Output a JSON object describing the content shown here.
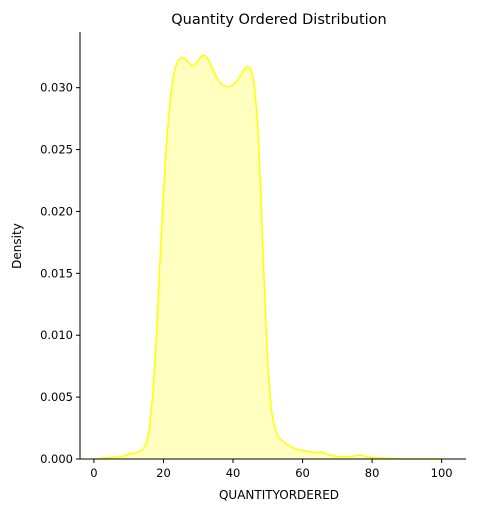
{
  "chart_data": {
    "type": "area",
    "title": "Quantity Ordered Distribution",
    "xlabel": "QUANTITYORDERED",
    "ylabel": "Density",
    "xlim": [
      -4,
      107
    ],
    "ylim": [
      0,
      0.0345
    ],
    "xticks": [
      0,
      20,
      40,
      60,
      80,
      100
    ],
    "xtick_labels": [
      "0",
      "20",
      "40",
      "60",
      "80",
      "100"
    ],
    "yticks": [
      0,
      0.005,
      0.01,
      0.015,
      0.02,
      0.025,
      0.03
    ],
    "ytick_labels": [
      "0.000",
      "0.005",
      "0.010",
      "0.015",
      "0.020",
      "0.025",
      "0.030"
    ],
    "grid": false,
    "legend": "none",
    "colors": {
      "line": "#ffff00",
      "fill": "#ffffc0",
      "axes": "#000000"
    },
    "series": [
      {
        "x": [
          0,
          4,
          8,
          10,
          12,
          14,
          15,
          16,
          17,
          18,
          19,
          20,
          21,
          22,
          23,
          24,
          25,
          26,
          27,
          28,
          29,
          30,
          31,
          32,
          33,
          34,
          35,
          36,
          37,
          38,
          39,
          40,
          41,
          42,
          43,
          44,
          45,
          46,
          47,
          48,
          49,
          50,
          51,
          52,
          53,
          54,
          56,
          58,
          60,
          62,
          64,
          65,
          66,
          68,
          70,
          72,
          74,
          76,
          77,
          78,
          80,
          85,
          90,
          95,
          100
        ],
        "y": [
          0.0,
          0.0001,
          0.0002,
          0.0004,
          0.0005,
          0.0007,
          0.0012,
          0.0025,
          0.0055,
          0.01,
          0.016,
          0.0215,
          0.026,
          0.0292,
          0.0312,
          0.0321,
          0.0324,
          0.0324,
          0.0321,
          0.0318,
          0.0318,
          0.0322,
          0.0326,
          0.0326,
          0.0322,
          0.0316,
          0.031,
          0.0305,
          0.0302,
          0.0301,
          0.0301,
          0.0302,
          0.0305,
          0.0309,
          0.0314,
          0.0317,
          0.0316,
          0.0305,
          0.0275,
          0.0215,
          0.014,
          0.0075,
          0.004,
          0.0025,
          0.0018,
          0.0015,
          0.0011,
          0.0008,
          0.0007,
          0.0006,
          0.0005,
          0.0006,
          0.0005,
          0.0003,
          0.0002,
          0.0002,
          0.0002,
          0.0003,
          0.0003,
          0.0002,
          0.0001,
          5e-05,
          0.0,
          0.0,
          0.0
        ]
      }
    ]
  }
}
